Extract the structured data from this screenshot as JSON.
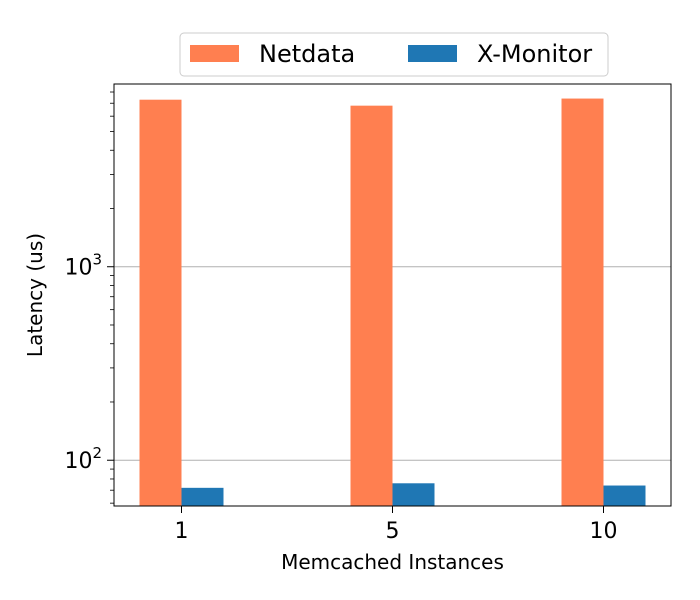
{
  "chart_data": {
    "type": "bar",
    "categories": [
      "1",
      "5",
      "10"
    ],
    "series": [
      {
        "name": "Netdata",
        "values": [
          7300,
          6800,
          7400
        ],
        "color": "#ff7f50"
      },
      {
        "name": "X-Monitor",
        "values": [
          72,
          76,
          74
        ],
        "color": "#1f77b4"
      }
    ],
    "xlabel": "Memcached Instances",
    "ylabel": "Latency (us)",
    "yscale": "log",
    "ylim": [
      58,
      8800
    ],
    "yticks": [
      {
        "value": 100,
        "base": "10",
        "exp": "2"
      },
      {
        "value": 1000,
        "base": "10",
        "exp": "3"
      }
    ],
    "grid": "y-major",
    "legend_position": "top-center-outside"
  }
}
